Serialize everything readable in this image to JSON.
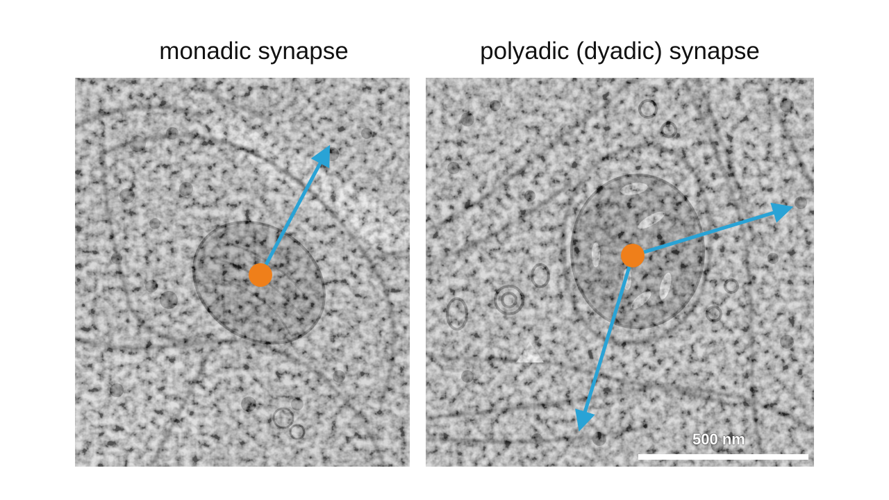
{
  "titles": {
    "left": "monadic synapse",
    "right": "polyadic (dyadic) synapse"
  },
  "scale_bar": {
    "label": "500 nm"
  },
  "colors": {
    "arrow": "#29a3d6",
    "synapse_point": "#ef7f1a",
    "membrane": "#2b2b2b",
    "cytoplasm": "#a7a7a7"
  }
}
